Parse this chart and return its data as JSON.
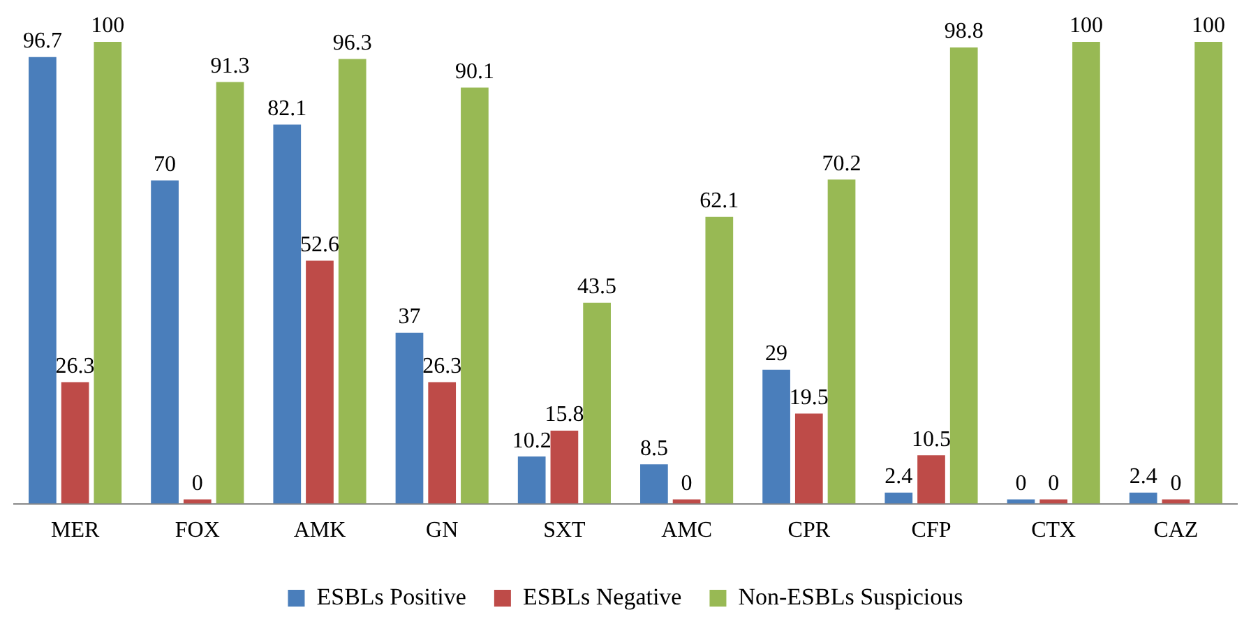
{
  "chart_data": {
    "type": "bar",
    "categories": [
      "MER",
      "FOX",
      "AMK",
      "GN",
      "SXT",
      "AMC",
      "CPR",
      "CFP",
      "CTX",
      "CAZ"
    ],
    "series": [
      {
        "name": "ESBLs Positive",
        "color": "#4a7ebb",
        "values": [
          96.7,
          70,
          82.1,
          37,
          10.2,
          8.5,
          29,
          2.4,
          0,
          2.4
        ]
      },
      {
        "name": "ESBLs Negative",
        "color": "#be4b48",
        "values": [
          26.3,
          0,
          52.6,
          26.3,
          15.8,
          0,
          19.5,
          10.5,
          0,
          0
        ]
      },
      {
        "name": "Non-ESBLs Suspicious",
        "color": "#98b954",
        "values": [
          100,
          91.3,
          96.3,
          90.1,
          43.5,
          62.1,
          70.2,
          98.8,
          100,
          100
        ]
      }
    ],
    "data_labels": true,
    "legend": "bottom",
    "grid": false
  }
}
